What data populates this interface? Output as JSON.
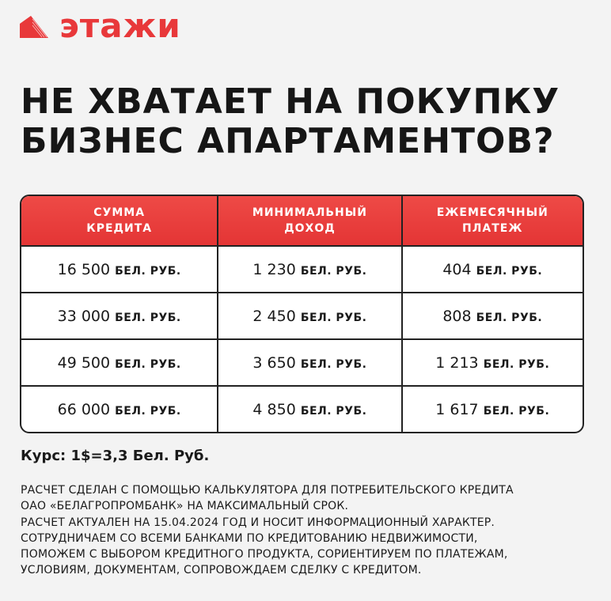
{
  "brand": {
    "name": "этажи",
    "color": "#e8383a",
    "icon": "building-logo-icon"
  },
  "title": [
    "НЕ ХВАТАЕТ НА ПОКУПКУ",
    "БИЗНЕС АПАРТАМЕНТОВ?"
  ],
  "table": {
    "headers": [
      [
        "СУММА",
        "КРЕДИТА"
      ],
      [
        "МИНИМАЛЬНЫЙ",
        "ДОХОД"
      ],
      [
        "ЕЖЕМЕСЯЧНЫЙ",
        "ПЛАТЕЖ"
      ]
    ],
    "unit": "БЕЛ. РУБ.",
    "rows": [
      [
        "16 500",
        "1 230",
        "404"
      ],
      [
        "33 000",
        "2 450",
        "808"
      ],
      [
        "49 500",
        "3 650",
        "1 213"
      ],
      [
        "66 000",
        "4 850",
        "1 617"
      ]
    ],
    "header_color": "#e8383a"
  },
  "rate": "Курс: 1$=3,3 Бел. Руб.",
  "notes": [
    "РАСЧЕТ СДЕЛАН С ПОМОЩЬЮ КАЛЬКУЛЯТОРА ДЛЯ ПОТРЕБИТЕЛЬСКОГО КРЕДИТА",
    "ОАО «БЕЛАГРОПРОМБАНК» НА МАКСИМАЛЬНЫЙ СРОК.",
    "РАСЧЕТ АКТУАЛЕН НА 15.04.2024 ГОД И НОСИТ ИНФОРМАЦИОННЫЙ ХАРАКТЕР.",
    "СОТРУДНИЧАЕМ СО ВСЕМИ БАНКАМИ ПО КРЕДИТОВАНИЮ НЕДВИЖИМОСТИ,",
    "ПОМОЖЕМ С ВЫБОРОМ КРЕДИТНОГО ПРОДУКТА, СОРИЕНТИРУЕМ ПО ПЛАТЕЖАМ,",
    "УСЛОВИЯМ, ДОКУМЕНТАМ, СОПРОВОЖДАЕМ СДЕЛКУ С КРЕДИТОМ."
  ]
}
